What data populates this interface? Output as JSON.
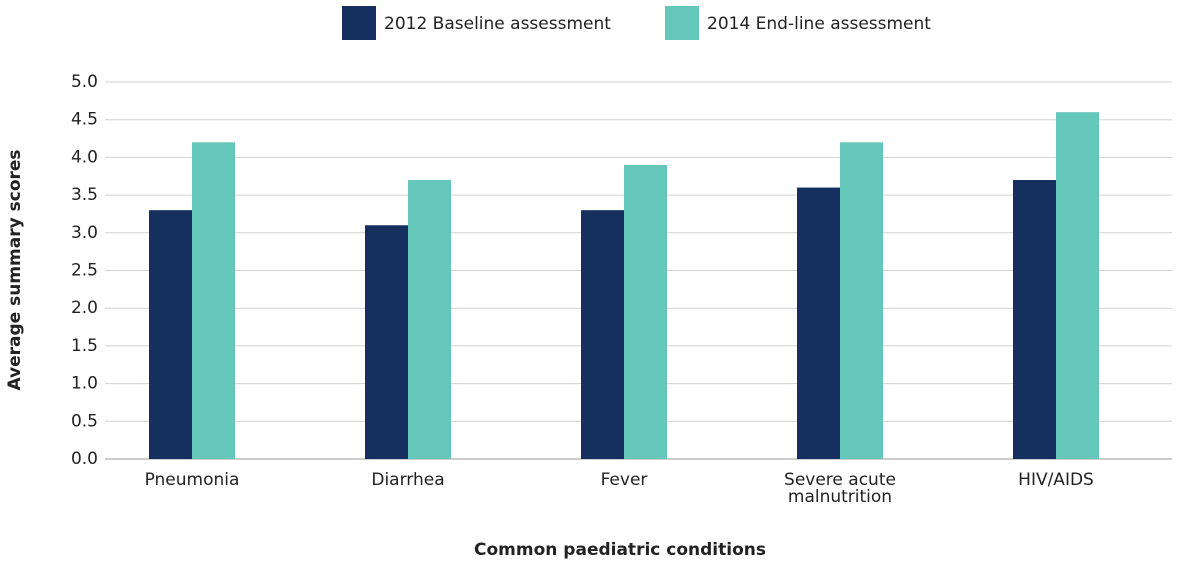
{
  "chart_data": {
    "type": "bar",
    "x_label": "Common paediatric conditions",
    "y_label": "Average summary scores",
    "categories": [
      "Pneumonia",
      "Diarrhea",
      "Fever",
      "Severe acute malnutrition",
      "HIV/AIDS"
    ],
    "series": [
      {
        "name": "2012 Baseline assessment",
        "color": "#15305e",
        "values": [
          3.3,
          3.1,
          3.3,
          3.6,
          3.7
        ]
      },
      {
        "name": "2014 End-line assessment",
        "color": "#65c6ba",
        "values": [
          4.2,
          3.7,
          3.9,
          4.2,
          4.6
        ]
      }
    ],
    "ylim": [
      0,
      5
    ],
    "yticks": [
      {
        "value": 0,
        "label": "0.0"
      },
      0.5,
      {
        "value": 1,
        "label": "1.0"
      },
      1.5,
      {
        "value": 2,
        "label": "2.0"
      },
      2.5,
      {
        "value": 3,
        "label": "3.0"
      },
      3.5,
      {
        "value": 4,
        "label": "4.0"
      },
      4.5,
      {
        "value": 5,
        "label": "5.0"
      }
    ],
    "grid": true,
    "legend": "top"
  }
}
